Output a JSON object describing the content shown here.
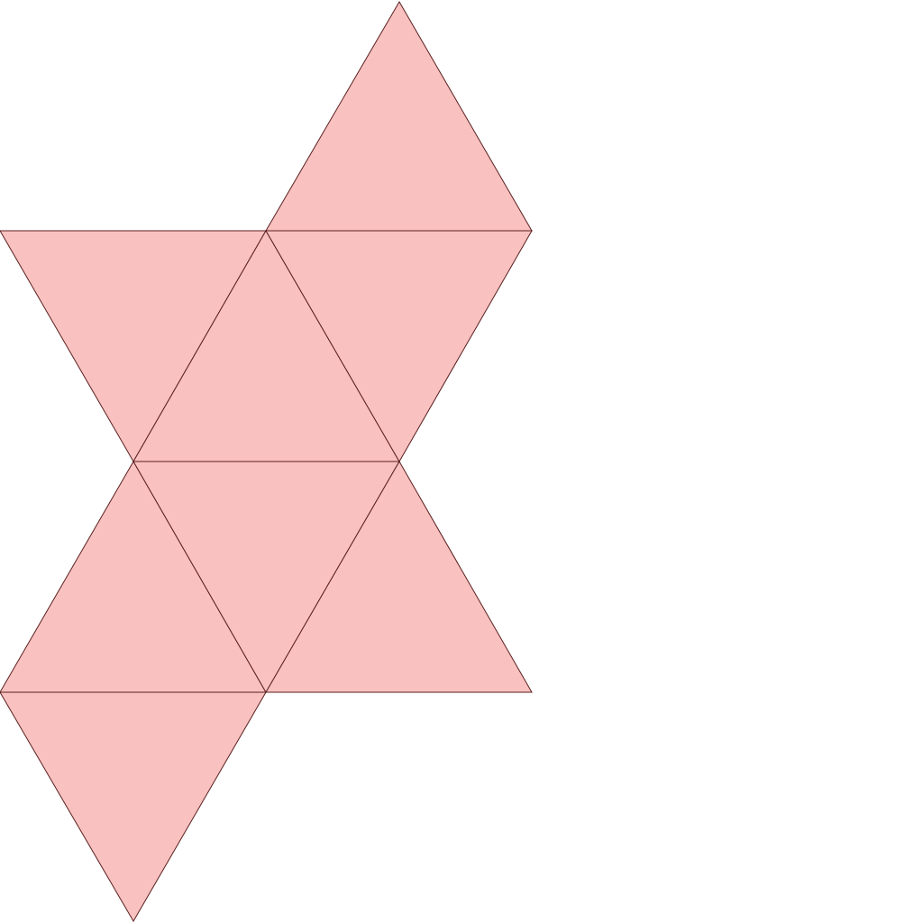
{
  "diagram": {
    "kind": "octahedron-net",
    "face_count": 8,
    "colors": {
      "background": "#ffffff",
      "face_fill": "#f9c2c0",
      "edge_stroke": "#5a1f1f"
    }
  }
}
